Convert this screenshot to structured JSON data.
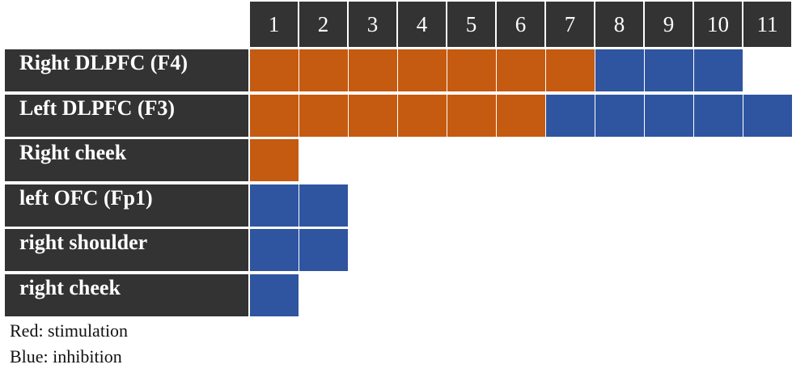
{
  "colors": {
    "header_bg": "#333333",
    "header_text": "#ffffff",
    "stimulation": "#c55a11",
    "inhibition": "#2f55a1",
    "legend_text": "#111111"
  },
  "chart_data": {
    "type": "table",
    "columns": [
      "1",
      "2",
      "3",
      "4",
      "5",
      "6",
      "7",
      "8",
      "9",
      "10",
      "11"
    ],
    "rows": [
      {
        "label": "Right DLPFC (F4)",
        "cells": [
          "S",
          "S",
          "S",
          "S",
          "S",
          "S",
          "S",
          "I",
          "I",
          "I",
          ""
        ]
      },
      {
        "label": "Left DLPFC (F3)",
        "cells": [
          "S",
          "S",
          "S",
          "S",
          "S",
          "S",
          "I",
          "I",
          "I",
          "I",
          "I"
        ]
      },
      {
        "label": "Right cheek",
        "cells": [
          "S",
          "",
          "",
          "",
          "",
          "",
          "",
          "",
          "",
          "",
          ""
        ]
      },
      {
        "label": "left OFC (Fp1)",
        "cells": [
          "I",
          "I",
          "",
          "",
          "",
          "",
          "",
          "",
          "",
          "",
          ""
        ]
      },
      {
        "label": "right shoulder",
        "cells": [
          "I",
          "I",
          "",
          "",
          "",
          "",
          "",
          "",
          "",
          "",
          ""
        ]
      },
      {
        "label": "right cheek",
        "cells": [
          "I",
          "",
          "",
          "",
          "",
          "",
          "",
          "",
          "",
          "",
          ""
        ]
      }
    ],
    "cell_codes": {
      "S": "stimulation",
      "I": "inhibition"
    }
  },
  "legend": {
    "red": "Red: stimulation",
    "blue": "Blue: inhibition"
  }
}
